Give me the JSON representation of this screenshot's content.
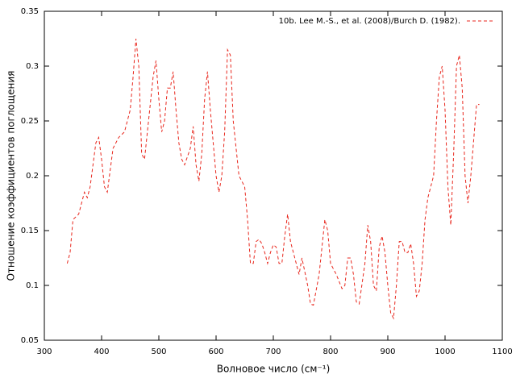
{
  "chart_data": {
    "type": "line",
    "xlabel": "Волновое число (см⁻¹)",
    "ylabel": "Отношение коэффициентов поглощения",
    "x": [
      340,
      345,
      350,
      360,
      370,
      375,
      380,
      390,
      395,
      400,
      405,
      410,
      420,
      425,
      430,
      440,
      450,
      455,
      460,
      465,
      470,
      475,
      480,
      490,
      495,
      500,
      505,
      510,
      515,
      520,
      525,
      530,
      535,
      540,
      545,
      555,
      560,
      565,
      570,
      575,
      580,
      585,
      590,
      595,
      600,
      605,
      610,
      615,
      620,
      625,
      630,
      640,
      650,
      655,
      660,
      665,
      670,
      675,
      680,
      685,
      690,
      695,
      700,
      705,
      710,
      715,
      720,
      725,
      730,
      740,
      745,
      750,
      760,
      765,
      770,
      780,
      790,
      795,
      800,
      810,
      820,
      825,
      830,
      835,
      840,
      845,
      850,
      860,
      865,
      870,
      875,
      880,
      885,
      890,
      895,
      900,
      905,
      910,
      915,
      920,
      925,
      930,
      935,
      940,
      945,
      950,
      955,
      960,
      965,
      970,
      975,
      980,
      985,
      990,
      995,
      1000,
      1005,
      1010,
      1015,
      1020,
      1025,
      1030,
      1035,
      1040,
      1045,
      1055,
      1060
    ],
    "series": [
      {
        "name": "10b. Lee M.-S., et al. (2008)/Burch D. (1982).",
        "color": "#e8261c",
        "values": [
          0.12,
          0.13,
          0.16,
          0.165,
          0.185,
          0.18,
          0.19,
          0.23,
          0.235,
          0.215,
          0.19,
          0.185,
          0.225,
          0.23,
          0.235,
          0.24,
          0.26,
          0.29,
          0.325,
          0.3,
          0.22,
          0.215,
          0.24,
          0.29,
          0.305,
          0.27,
          0.24,
          0.25,
          0.28,
          0.28,
          0.295,
          0.26,
          0.23,
          0.215,
          0.21,
          0.225,
          0.245,
          0.21,
          0.195,
          0.22,
          0.27,
          0.295,
          0.26,
          0.23,
          0.2,
          0.185,
          0.2,
          0.24,
          0.315,
          0.31,
          0.25,
          0.2,
          0.19,
          0.16,
          0.12,
          0.12,
          0.14,
          0.142,
          0.138,
          0.13,
          0.12,
          0.13,
          0.137,
          0.135,
          0.12,
          0.12,
          0.145,
          0.165,
          0.14,
          0.12,
          0.11,
          0.125,
          0.1,
          0.083,
          0.082,
          0.11,
          0.16,
          0.15,
          0.12,
          0.11,
          0.097,
          0.1,
          0.125,
          0.125,
          0.11,
          0.085,
          0.083,
          0.12,
          0.155,
          0.14,
          0.1,
          0.095,
          0.135,
          0.145,
          0.13,
          0.1,
          0.075,
          0.07,
          0.1,
          0.14,
          0.14,
          0.13,
          0.13,
          0.138,
          0.12,
          0.09,
          0.095,
          0.12,
          0.16,
          0.18,
          0.19,
          0.2,
          0.25,
          0.29,
          0.3,
          0.26,
          0.19,
          0.155,
          0.22,
          0.3,
          0.31,
          0.28,
          0.2,
          0.175,
          0.2,
          0.265,
          0.265
        ]
      }
    ],
    "xlim": [
      300,
      1100
    ],
    "xticks": [
      300,
      400,
      500,
      600,
      700,
      800,
      900,
      1000,
      1100
    ],
    "ylim": [
      0.05,
      0.35
    ],
    "yticks": [
      0.05,
      0.1,
      0.15,
      0.2,
      0.25,
      0.3,
      0.35
    ],
    "legend": "top-right",
    "grid": false
  }
}
